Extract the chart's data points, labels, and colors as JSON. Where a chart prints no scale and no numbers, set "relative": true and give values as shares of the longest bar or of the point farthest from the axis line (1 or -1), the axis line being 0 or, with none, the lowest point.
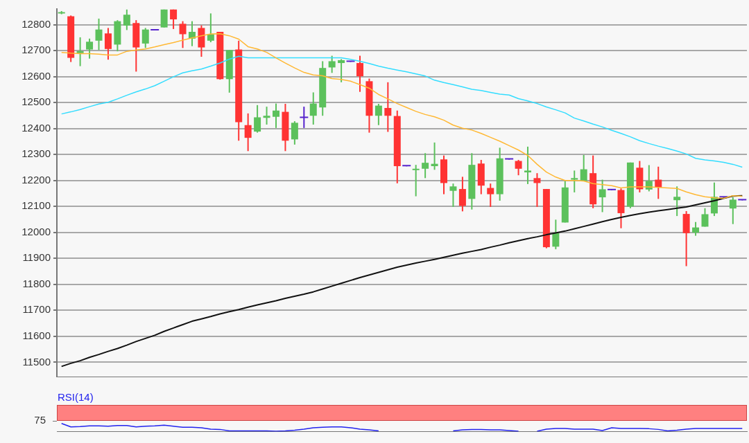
{
  "chart_data": [
    {
      "type": "candlestick",
      "categories": [
        null,
        null,
        null,
        null,
        null,
        null,
        null,
        null,
        null,
        null,
        null,
        null,
        null,
        null,
        null,
        null,
        null,
        null,
        null,
        null,
        null,
        null,
        null,
        null,
        null,
        null,
        null,
        null,
        null,
        null,
        null,
        null,
        null,
        null,
        null,
        null,
        null,
        null,
        null,
        null,
        null,
        null,
        null,
        null,
        null,
        null,
        null,
        null,
        null,
        null,
        null,
        null,
        null,
        null,
        null,
        null,
        null,
        null,
        null,
        null,
        null,
        null,
        null,
        null,
        null,
        null,
        null,
        null,
        null,
        null,
        null,
        null,
        null,
        null
      ],
      "ohlc": [
        [
          12845,
          12852,
          12840,
          12848
        ],
        [
          12832,
          12835,
          12656,
          12672
        ],
        [
          12690,
          12751,
          12640,
          12698
        ],
        [
          12704,
          12746,
          12669,
          12734
        ],
        [
          12738,
          12823,
          12702,
          12781
        ],
        [
          12766,
          12787,
          12665,
          12706
        ],
        [
          12723,
          12817,
          12697,
          12813
        ],
        [
          12796,
          12858,
          12779,
          12838
        ],
        [
          12806,
          12817,
          12619,
          12712
        ],
        [
          12727,
          12787,
          12710,
          12781
        ],
        [
          12780,
          12780,
          12780,
          12780
        ],
        [
          12789,
          12858,
          12789,
          12858
        ],
        [
          12858,
          12858,
          12783,
          12820
        ],
        [
          12803,
          12813,
          12710,
          12763
        ],
        [
          12746,
          12813,
          12717,
          12772
        ],
        [
          12787,
          12797,
          12676,
          12712
        ],
        [
          12738,
          12843,
          12732,
          12763
        ],
        [
          12772,
          12772,
          12588,
          12590
        ],
        [
          12590,
          12702,
          12538,
          12702
        ],
        [
          12704,
          12738,
          12353,
          12424
        ],
        [
          12413,
          12458,
          12313,
          12364
        ],
        [
          12388,
          12490,
          12384,
          12443
        ],
        [
          12441,
          12484,
          12415,
          12449
        ],
        [
          12445,
          12496,
          12402,
          12469
        ],
        [
          12464,
          12495,
          12313,
          12353
        ],
        [
          12358,
          12428,
          12338,
          12422
        ],
        [
          12443,
          12484,
          12402,
          12443
        ],
        [
          12449,
          12539,
          12415,
          12496
        ],
        [
          12481,
          12659,
          12449,
          12633
        ],
        [
          12635,
          12680,
          12614,
          12659
        ],
        [
          12652,
          12667,
          12578,
          12663
        ],
        [
          12659,
          12659,
          12659,
          12659
        ],
        [
          12652,
          12680,
          12541,
          12601
        ],
        [
          12582,
          12592,
          12384,
          12449
        ],
        [
          12449,
          12495,
          12413,
          12488
        ],
        [
          12479,
          12578,
          12387,
          12449
        ],
        [
          12448,
          12469,
          12189,
          12255
        ],
        [
          12257,
          12257,
          12257,
          12257
        ],
        [
          12240,
          12260,
          12139,
          12245
        ],
        [
          12245,
          12305,
          12209,
          12268
        ],
        [
          12255,
          12346,
          12241,
          12264
        ],
        [
          12281,
          12296,
          12147,
          12190
        ],
        [
          12160,
          12188,
          12098,
          12177
        ],
        [
          12167,
          12214,
          12081,
          12102
        ],
        [
          12129,
          12305,
          12088,
          12260
        ],
        [
          12265,
          12279,
          12147,
          12180
        ],
        [
          12171,
          12188,
          12098,
          12147
        ],
        [
          12147,
          12326,
          12122,
          12285
        ],
        [
          12283,
          12283,
          12283,
          12283
        ],
        [
          12275,
          12279,
          12220,
          12245
        ],
        [
          12231,
          12330,
          12186,
          12238
        ],
        [
          12209,
          12228,
          12098,
          12190
        ],
        [
          12167,
          12167,
          11939,
          11943
        ],
        [
          11945,
          12049,
          11935,
          11998
        ],
        [
          12038,
          12198,
          12038,
          12173
        ],
        [
          12203,
          12238,
          12154,
          12209
        ],
        [
          12198,
          12298,
          12198,
          12243
        ],
        [
          12228,
          12296,
          12093,
          12108
        ],
        [
          12135,
          12203,
          12078,
          12166
        ],
        [
          12165,
          12165,
          12165,
          12165
        ],
        [
          12163,
          12169,
          12016,
          12074
        ],
        [
          12099,
          12269,
          12093,
          12269
        ],
        [
          12249,
          12275,
          12154,
          12166
        ],
        [
          12165,
          12259,
          12158,
          12198
        ],
        [
          12203,
          12253,
          12129,
          12173
        ],
        null,
        [
          12124,
          12177,
          12063,
          12137
        ],
        [
          12071,
          12082,
          11870,
          11997
        ],
        [
          11999,
          12040,
          11987,
          12019
        ],
        [
          12022,
          12093,
          12022,
          12070
        ],
        [
          12073,
          12192,
          12063,
          12137
        ],
        [
          12137,
          12137,
          12137,
          12137
        ],
        [
          12092,
          12135,
          12032,
          12126
        ],
        [
          12126,
          12126,
          12126,
          12126
        ]
      ],
      "colors": [
        "#5cc15c",
        "#ff3333",
        "#5cc15c",
        "#5cc15c",
        "#5cc15c",
        "#ff3333",
        "#5cc15c",
        "#5cc15c",
        "#ff3333",
        "#5cc15c",
        "#5522cc",
        "#5cc15c",
        "#ff3333",
        "#ff3333",
        "#5cc15c",
        "#ff3333",
        "#5cc15c",
        "#ff3333",
        "#5cc15c",
        "#ff3333",
        "#ff3333",
        "#5cc15c",
        "#5cc15c",
        "#5cc15c",
        "#ff3333",
        "#5cc15c",
        "#5522cc",
        "#5cc15c",
        "#5cc15c",
        "#5cc15c",
        "#5cc15c",
        "#5522cc",
        "#ff3333",
        "#ff3333",
        "#5cc15c",
        "#ff3333",
        "#ff3333",
        "#5522cc",
        "#5cc15c",
        "#5cc15c",
        "#5cc15c",
        "#ff3333",
        "#5cc15c",
        "#ff3333",
        "#5cc15c",
        "#ff3333",
        "#ff3333",
        "#5cc15c",
        "#5522cc",
        "#ff3333",
        "#5cc15c",
        "#ff3333",
        "#ff3333",
        "#5cc15c",
        "#5cc15c",
        "#5cc15c",
        "#5cc15c",
        "#ff3333",
        "#5cc15c",
        "#5522cc",
        "#ff3333",
        "#5cc15c",
        "#ff3333",
        "#5cc15c",
        "#ff3333",
        null,
        "#5cc15c",
        "#ff3333",
        "#5cc15c",
        "#5cc15c",
        "#5cc15c",
        "#5522cc",
        "#5cc15c",
        "#5522cc"
      ],
      "series": [
        {
          "type": "line",
          "color": "#ffb833",
          "values": [
            12693,
            12690,
            12688,
            12688,
            12686,
            12683,
            12683,
            12697,
            12702,
            12706,
            12714,
            12723,
            12731,
            12740,
            12749,
            12757,
            12764,
            12765,
            12757,
            12744,
            12715,
            12706,
            12693,
            12672,
            12652,
            12633,
            12616,
            12606,
            12603,
            12592,
            12589,
            12582,
            12569,
            12555,
            12531,
            12514,
            12496,
            12481,
            12466,
            12454,
            12445,
            12432,
            12413,
            12401,
            12394,
            12381,
            12366,
            12351,
            12334,
            12317,
            12296,
            12262,
            12232,
            12213,
            12200,
            12200,
            12198,
            12188,
            12184,
            12180,
            12171,
            12175,
            12175,
            12175,
            12173,
            12171,
            12169,
            12156,
            12145,
            12137,
            12133,
            12131,
            12141,
            12139
          ]
        },
        {
          "type": "line",
          "color": "#33ddff",
          "values": [
            12456,
            12464,
            12473,
            12484,
            12494,
            12501,
            12514,
            12528,
            12541,
            12552,
            12565,
            12582,
            12599,
            12614,
            12622,
            12629,
            12640,
            12652,
            12667,
            12678,
            12672,
            12672,
            12672,
            12672,
            12672,
            12672,
            12672,
            12672,
            12672,
            12672,
            12672,
            12666,
            12659,
            12650,
            12640,
            12632,
            12625,
            12618,
            12610,
            12602,
            12586,
            12577,
            12569,
            12560,
            12551,
            12546,
            12539,
            12532,
            12529,
            12515,
            12506,
            12496,
            12483,
            12472,
            12460,
            12440,
            12429,
            12417,
            12406,
            12393,
            12381,
            12368,
            12353,
            12342,
            12332,
            12323,
            12313,
            12302,
            12285,
            12279,
            12275,
            12270,
            12262,
            12251
          ]
        },
        {
          "type": "line",
          "color": "#111111",
          "values": [
            11484,
            11496,
            11506,
            11519,
            11530,
            11542,
            11553,
            11566,
            11580,
            11592,
            11604,
            11619,
            11632,
            11645,
            11658,
            11667,
            11676,
            11686,
            11695,
            11703,
            11712,
            11721,
            11729,
            11737,
            11746,
            11754,
            11762,
            11771,
            11782,
            11793,
            11804,
            11815,
            11826,
            11836,
            11846,
            11856,
            11866,
            11874,
            11882,
            11889,
            11896,
            11904,
            11912,
            11920,
            11927,
            11934,
            11943,
            11951,
            11960,
            11968,
            11976,
            11983,
            11991,
            11998,
            12005,
            12014,
            12023,
            12032,
            12041,
            12050,
            12058,
            12065,
            12072,
            12078,
            12083,
            12088,
            12093,
            12098,
            12106,
            12114,
            12122,
            12131,
            12140,
            12141
          ]
        }
      ],
      "ylim": [
        11445,
        12860
      ],
      "yticks": [
        11500,
        11600,
        11700,
        11800,
        11900,
        12000,
        12100,
        12200,
        12300,
        12400,
        12500,
        12600,
        12700,
        12800
      ],
      "grid": "y",
      "tick_labels": "y",
      "legend": false,
      "marker": "none"
    },
    {
      "type": "line",
      "title": "RSI(14)",
      "categories": [
        null,
        null,
        null,
        null,
        null,
        null,
        null,
        null,
        null,
        null,
        null,
        null,
        null,
        null,
        null,
        null,
        null,
        null,
        null,
        null,
        null,
        null,
        null,
        null,
        null,
        null,
        null,
        null,
        null,
        null,
        null,
        null,
        null,
        null,
        null,
        null,
        null,
        null,
        null,
        null,
        null,
        null,
        null,
        null,
        null,
        null,
        null,
        null,
        null,
        null,
        null,
        null,
        null,
        null,
        null,
        null,
        null,
        null,
        null,
        null,
        null,
        null,
        null,
        null,
        null,
        null,
        null,
        null,
        null,
        null,
        null,
        null,
        null,
        null
      ],
      "series": [
        {
          "color": "#2222ee",
          "values": [
            1,
            0.55,
            0.59,
            0.68,
            0.68,
            0.64,
            0.73,
            0.73,
            0.55,
            0.64,
            0.68,
            0.77,
            0.64,
            0.5,
            0.5,
            0.45,
            0.27,
            0.23,
            0.05,
            0.05,
            0.05,
            0.05,
            0.05,
            0,
            0.05,
            0.14,
            0.27,
            0.45,
            0.5,
            0.55,
            0.55,
            0.45,
            0.27,
            0.18,
            0.05,
            null,
            null,
            null,
            null,
            null,
            null,
            null,
            0.05,
            0.18,
            0.23,
            0.23,
            0.18,
            0.18,
            0.09,
            0,
            null,
            0,
            0.27,
            0.36,
            0.36,
            0.27,
            0.27,
            0.27,
            0.09,
            0.45,
            0.36,
            0.36,
            0.36,
            0.32,
            0.23,
            0.05,
            0.14,
            0.27,
            0.36,
            0.36,
            0.36,
            0.36,
            0.36,
            0.36
          ]
        }
      ],
      "relative": true,
      "annotations": [
        "75"
      ],
      "legend": false,
      "marker": "none"
    }
  ]
}
